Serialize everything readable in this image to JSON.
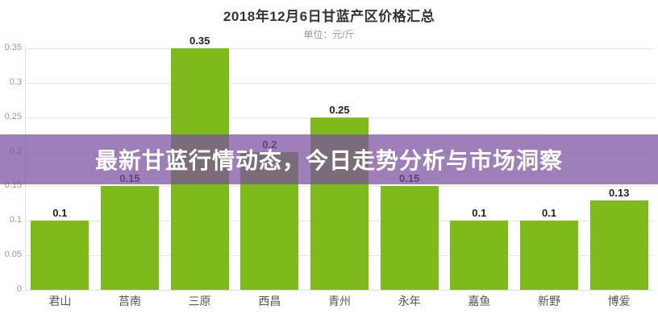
{
  "header": {
    "title": "2018年12月6日甘蓝产区价格汇总",
    "subtitle": "单位：元/斤"
  },
  "banner": {
    "text": "最新甘蓝行情动态，今日走势分析与市场洞察",
    "bg_color": "rgba(121,78,158,0.72)",
    "text_color": "#ffffff"
  },
  "chart_data": {
    "type": "bar",
    "title": "2018年12月6日甘蓝产区价格汇总",
    "subtitle": "单位：元/斤",
    "categories": [
      "君山",
      "莒南",
      "三原",
      "西昌",
      "青州",
      "永年",
      "嘉鱼",
      "新野",
      "博爱"
    ],
    "values": [
      0.1,
      0.15,
      0.35,
      0.2,
      0.25,
      0.15,
      0.1,
      0.1,
      0.13
    ],
    "value_labels": [
      "0.1",
      "0.15",
      "0.35",
      "0.2",
      "0.25",
      "0.15",
      "0.1",
      "0.1",
      "0.13"
    ],
    "xlabel": "",
    "ylabel": "元/斤",
    "ylim": [
      0,
      0.35
    ],
    "ytick_values": [
      0,
      0.05,
      0.1,
      0.15,
      0.2,
      0.25,
      0.3,
      0.35
    ],
    "ytick_labels": [
      "0",
      "0.05",
      "0.1",
      "0.15",
      "0.2",
      "0.25",
      "0.3",
      "0.35"
    ],
    "grid": true,
    "legend_position": "none",
    "data_labels": true,
    "bar_color": "#7eba1c",
    "gridline_color": "#e8e8e8",
    "axis_text_color": "#999999",
    "category_text_color": "#555555",
    "value_label_color": "#222222"
  }
}
